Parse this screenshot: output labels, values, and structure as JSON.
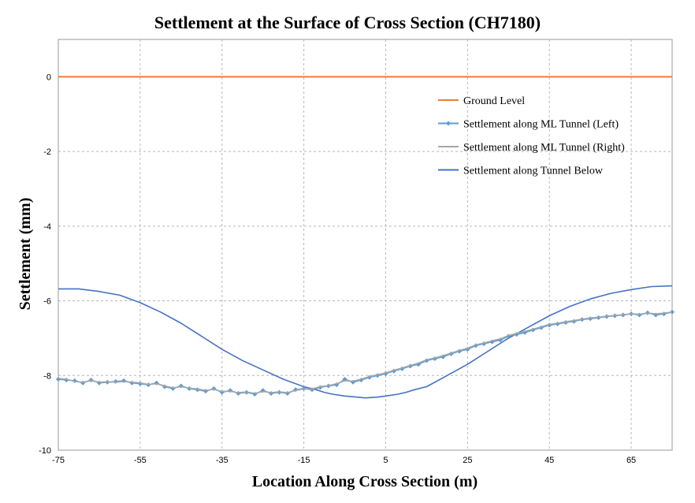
{
  "chart_data": {
    "type": "line",
    "title": "Settlement at the Surface of Cross Section (CH7180)",
    "xlabel": "Location Along Cross Section (m)",
    "ylabel": "Settlement (mm)",
    "xlim": [
      -75,
      75
    ],
    "ylim": [
      -10,
      1
    ],
    "xticks": [
      -75,
      -55,
      -35,
      -15,
      5,
      25,
      45,
      65
    ],
    "xtick_labels": [
      "-75",
      "-55",
      "-35",
      "-15",
      "5",
      "25",
      "45",
      "65"
    ],
    "yticks": [
      0,
      -2,
      -4,
      -6,
      -8,
      -10
    ],
    "ytick_labels": [
      "0",
      "-2",
      "-4",
      "-6",
      "-8",
      "-10"
    ],
    "grid": true,
    "legend_position": "top-right",
    "series": [
      {
        "name": "Ground Level",
        "color": "#ED7D31",
        "marker": "none",
        "x": [
          -75,
          75
        ],
        "y": [
          0,
          0
        ]
      },
      {
        "name": "Settlement along ML Tunnel (Left)",
        "color": "#5B9BD5",
        "marker": "diamond",
        "x": [
          -75,
          -73,
          -71,
          -69,
          -67,
          -65,
          -63,
          -61,
          -59,
          -57,
          -55,
          -53,
          -51,
          -49,
          -47,
          -45,
          -43,
          -41,
          -39,
          -37,
          -35,
          -33,
          -31,
          -29,
          -27,
          -25,
          -23,
          -21,
          -19,
          -17,
          -15,
          -13,
          -11,
          -9,
          -7,
          -5,
          -3,
          -1,
          1,
          3,
          5,
          7,
          9,
          11,
          13,
          15,
          17,
          19,
          21,
          23,
          25,
          27,
          29,
          31,
          33,
          35,
          37,
          39,
          41,
          43,
          45,
          47,
          49,
          51,
          53,
          55,
          57,
          59,
          61,
          63,
          65,
          67,
          69,
          71,
          73,
          75
        ],
        "y": [
          -8.1,
          -8.12,
          -8.14,
          -8.2,
          -8.12,
          -8.2,
          -8.18,
          -8.16,
          -8.14,
          -8.2,
          -8.22,
          -8.25,
          -8.2,
          -8.3,
          -8.35,
          -8.28,
          -8.35,
          -8.38,
          -8.42,
          -8.35,
          -8.45,
          -8.4,
          -8.48,
          -8.45,
          -8.5,
          -8.4,
          -8.48,
          -8.45,
          -8.48,
          -8.38,
          -8.35,
          -8.38,
          -8.32,
          -8.28,
          -8.25,
          -8.1,
          -8.18,
          -8.12,
          -8.05,
          -8.0,
          -7.95,
          -7.88,
          -7.82,
          -7.75,
          -7.7,
          -7.6,
          -7.55,
          -7.5,
          -7.42,
          -7.35,
          -7.3,
          -7.2,
          -7.15,
          -7.1,
          -7.05,
          -6.95,
          -6.9,
          -6.85,
          -6.78,
          -6.72,
          -6.65,
          -6.62,
          -6.58,
          -6.55,
          -6.5,
          -6.48,
          -6.45,
          -6.42,
          -6.4,
          -6.38,
          -6.35,
          -6.38,
          -6.32,
          -6.38,
          -6.35,
          -6.3
        ]
      },
      {
        "name": "Settlement along ML Tunnel (Right)",
        "color": "#A5A5A5",
        "marker": "none",
        "x": [
          -75,
          -73,
          -71,
          -69,
          -67,
          -65,
          -63,
          -61,
          -59,
          -57,
          -55,
          -53,
          -51,
          -49,
          -47,
          -45,
          -43,
          -41,
          -39,
          -37,
          -35,
          -33,
          -31,
          -29,
          -27,
          -25,
          -23,
          -21,
          -19,
          -17,
          -15,
          -13,
          -11,
          -9,
          -7,
          -5,
          -3,
          -1,
          1,
          3,
          5,
          7,
          9,
          11,
          13,
          15,
          17,
          19,
          21,
          23,
          25,
          27,
          29,
          31,
          33,
          35,
          37,
          39,
          41,
          43,
          45,
          47,
          49,
          51,
          53,
          55,
          57,
          59,
          61,
          63,
          65,
          67,
          69,
          71,
          73,
          75
        ],
        "y": [
          -8.08,
          -8.1,
          -8.16,
          -8.18,
          -8.14,
          -8.18,
          -8.17,
          -8.18,
          -8.16,
          -8.18,
          -8.2,
          -8.24,
          -8.22,
          -8.28,
          -8.33,
          -8.3,
          -8.34,
          -8.36,
          -8.4,
          -8.37,
          -8.43,
          -8.42,
          -8.46,
          -8.44,
          -8.48,
          -8.43,
          -8.46,
          -8.44,
          -8.46,
          -8.4,
          -8.36,
          -8.36,
          -8.3,
          -8.27,
          -8.22,
          -8.14,
          -8.15,
          -8.1,
          -8.03,
          -7.98,
          -7.93,
          -7.86,
          -7.8,
          -7.73,
          -7.67,
          -7.58,
          -7.53,
          -7.47,
          -7.4,
          -7.33,
          -7.27,
          -7.18,
          -7.13,
          -7.07,
          -7.02,
          -6.93,
          -6.87,
          -6.82,
          -6.76,
          -6.7,
          -6.63,
          -6.6,
          -6.56,
          -6.53,
          -6.49,
          -6.46,
          -6.44,
          -6.41,
          -6.39,
          -6.37,
          -6.35,
          -6.36,
          -6.33,
          -6.35,
          -6.33,
          -6.3
        ]
      },
      {
        "name": "Settlement along Tunnel Below",
        "color": "#4472C4",
        "marker": "none",
        "x": [
          -75,
          -70,
          -65,
          -60,
          -55,
          -50,
          -45,
          -40,
          -35,
          -30,
          -25,
          -20,
          -15,
          -12,
          -10,
          -8,
          -5,
          -2,
          0,
          3,
          5,
          8,
          10,
          12,
          15,
          20,
          25,
          30,
          35,
          40,
          45,
          50,
          55,
          60,
          65,
          70,
          75
        ],
        "y": [
          -5.68,
          -5.68,
          -5.75,
          -5.85,
          -6.05,
          -6.3,
          -6.6,
          -6.95,
          -7.3,
          -7.6,
          -7.85,
          -8.1,
          -8.3,
          -8.38,
          -8.45,
          -8.5,
          -8.55,
          -8.58,
          -8.6,
          -8.58,
          -8.55,
          -8.5,
          -8.45,
          -8.38,
          -8.3,
          -8.0,
          -7.7,
          -7.35,
          -7.0,
          -6.7,
          -6.4,
          -6.15,
          -5.95,
          -5.8,
          -5.7,
          -5.62,
          -5.6
        ]
      }
    ]
  }
}
